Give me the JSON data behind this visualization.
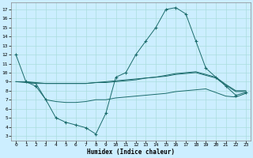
{
  "xlabel": "Humidex (Indice chaleur)",
  "background_color": "#cceeff",
  "grid_color": "#aadddd",
  "line_color": "#1a6b6b",
  "x_ticks": [
    0,
    1,
    2,
    3,
    4,
    5,
    6,
    7,
    8,
    9,
    10,
    11,
    12,
    13,
    14,
    15,
    16,
    17,
    18,
    19,
    20,
    21,
    22,
    23
  ],
  "y_ticks": [
    3,
    4,
    5,
    6,
    7,
    8,
    9,
    10,
    11,
    12,
    13,
    14,
    15,
    16,
    17
  ],
  "ylim": [
    2.5,
    17.8
  ],
  "xlim": [
    -0.5,
    23.5
  ],
  "line1_x": [
    0,
    1,
    2,
    3,
    4,
    5,
    6,
    7,
    8,
    9,
    10,
    11,
    12,
    13,
    14,
    15,
    16,
    17,
    18,
    19,
    20,
    21,
    22,
    23
  ],
  "line1_y": [
    12,
    9,
    8.5,
    7,
    5,
    4.5,
    4.2,
    3.9,
    3.2,
    5.5,
    9.5,
    10,
    12,
    13.5,
    15,
    17,
    17.2,
    16.5,
    13.5,
    10.5,
    9.5,
    8.5,
    7.5,
    7.8
  ],
  "line2_x": [
    0,
    1,
    2,
    3,
    4,
    5,
    6,
    7,
    8,
    9,
    10,
    11,
    12,
    13,
    14,
    15,
    16,
    17,
    18,
    19,
    20,
    21,
    22,
    23
  ],
  "line2_y": [
    9.0,
    8.9,
    8.8,
    8.8,
    8.8,
    8.8,
    8.8,
    8.8,
    8.9,
    8.9,
    9.0,
    9.1,
    9.2,
    9.4,
    9.5,
    9.7,
    9.9,
    10.0,
    10.1,
    9.8,
    9.5,
    8.7,
    8.0,
    8.0
  ],
  "line3_x": [
    1,
    2,
    3,
    4,
    5,
    6,
    7,
    8,
    9,
    10,
    11,
    12,
    13,
    14,
    15,
    16,
    17,
    18,
    19,
    20,
    21,
    22,
    23
  ],
  "line3_y": [
    9.0,
    8.8,
    7.0,
    6.8,
    6.7,
    6.7,
    6.8,
    7.0,
    7.0,
    7.2,
    7.3,
    7.4,
    7.5,
    7.6,
    7.7,
    7.9,
    8.0,
    8.1,
    8.2,
    7.8,
    7.4,
    7.3,
    7.7
  ],
  "line4_x": [
    0,
    1,
    2,
    3,
    4,
    5,
    6,
    7,
    8,
    9,
    10,
    11,
    12,
    13,
    14,
    15,
    16,
    17,
    18,
    19,
    20,
    21,
    22,
    23
  ],
  "line4_y": [
    9.0,
    9.0,
    8.9,
    8.8,
    8.8,
    8.8,
    8.8,
    8.8,
    8.9,
    9.0,
    9.1,
    9.2,
    9.3,
    9.4,
    9.5,
    9.6,
    9.8,
    9.9,
    10.0,
    9.7,
    9.4,
    8.6,
    7.9,
    7.9
  ]
}
